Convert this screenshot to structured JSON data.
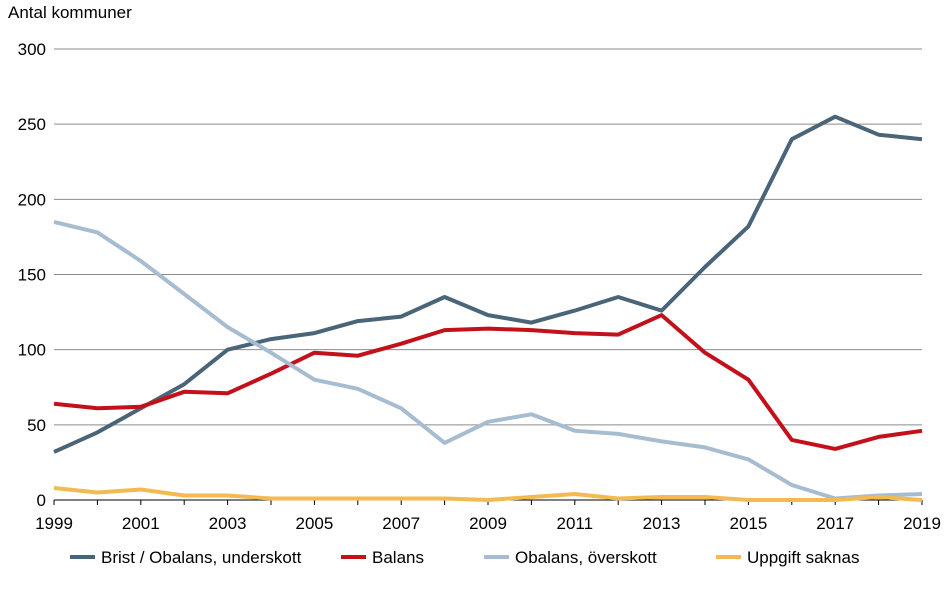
{
  "chart_data": {
    "type": "line",
    "title": "",
    "ylabel": "Antal kommuner",
    "xlabel": "",
    "ylim": [
      0,
      300
    ],
    "yticks": [
      0,
      50,
      100,
      150,
      200,
      250,
      300
    ],
    "xlim": [
      1999,
      2019
    ],
    "xticks": [
      1999,
      2001,
      2003,
      2005,
      2007,
      2009,
      2011,
      2013,
      2015,
      2017,
      2019
    ],
    "grid": "horizontal",
    "legend_position": "bottom",
    "x": [
      1999,
      2000,
      2001,
      2002,
      2003,
      2004,
      2005,
      2006,
      2007,
      2008,
      2009,
      2010,
      2011,
      2012,
      2013,
      2014,
      2015,
      2016,
      2017,
      2018,
      2019
    ],
    "series": [
      {
        "name": "Brist / Obalans, underskott",
        "color": "#4a6478",
        "values": [
          32,
          45,
          61,
          77,
          100,
          107,
          111,
          119,
          122,
          135,
          123,
          118,
          126,
          135,
          126,
          155,
          182,
          240,
          255,
          243,
          240
        ]
      },
      {
        "name": "Balans",
        "color": "#c3111c",
        "values": [
          64,
          61,
          62,
          72,
          71,
          84,
          98,
          96,
          104,
          113,
          114,
          113,
          111,
          110,
          123,
          98,
          80,
          40,
          34,
          42,
          46
        ]
      },
      {
        "name": "Obalans, överskott",
        "color": "#a6bcd0",
        "values": [
          185,
          178,
          159,
          137,
          115,
          98,
          80,
          74,
          61,
          38,
          52,
          57,
          46,
          44,
          39,
          35,
          27,
          10,
          1,
          3,
          4
        ]
      },
      {
        "name": "Uppgift saknas",
        "color": "#f3ba52",
        "values": [
          8,
          5,
          7,
          3,
          3,
          1,
          1,
          1,
          1,
          1,
          0,
          2,
          4,
          1,
          2,
          2,
          0,
          0,
          0,
          2,
          0
        ]
      }
    ]
  }
}
